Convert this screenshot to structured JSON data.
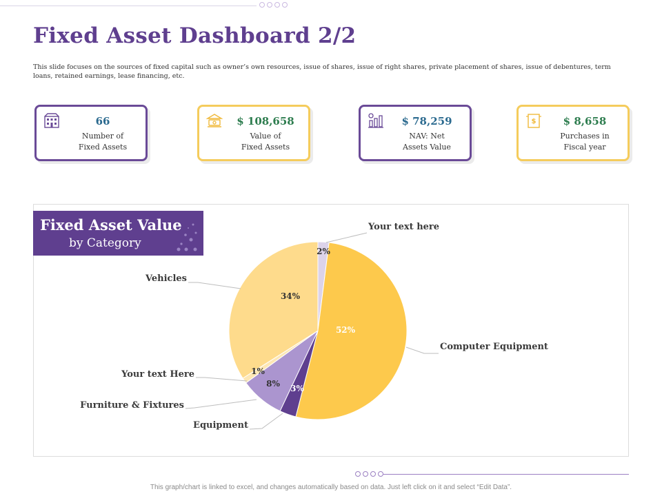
{
  "page": {
    "title": "Fixed Asset Dashboard 2/2",
    "description": "This slide focuses on the sources of fixed capital such as owner’s own resources, issue of shares, issue of right shares, private placement of shares, issue of debentures, term loans, retained earnings, lease financing, etc.",
    "footer": "This graph/chart is linked to excel, and changes automatically based on data. Just left click on it and select “Edit Data”."
  },
  "kpis": [
    {
      "value": "66",
      "label1": "Number of",
      "label2": "Fixed Assets",
      "icon": "building-icon",
      "color": "#2b6a8f"
    },
    {
      "value": "$ 108,658",
      "label1": "Value of",
      "label2": "Fixed Assets",
      "icon": "bank-icon",
      "color": "#2e7d4f"
    },
    {
      "value": "$ 78,259",
      "label1": "NAV: Net",
      "label2": "Assets Value",
      "icon": "growth-chart-icon",
      "color": "#2b6a8f"
    },
    {
      "value": "$ 8,658",
      "label1": "Purchases in",
      "label2": "Fiscal year",
      "icon": "purchase-doc-icon",
      "color": "#2e7d4f"
    }
  ],
  "chart_header": {
    "title": "Fixed Asset Value",
    "subtitle": "by Category"
  },
  "chart_data": {
    "type": "pie",
    "slices": [
      {
        "name": "Your text here",
        "value": 2,
        "label": "2%",
        "color": "#dcd3ea"
      },
      {
        "name": "Computer Equipment",
        "value": 52,
        "label": "52%",
        "color": "#fdc94c"
      },
      {
        "name": "Equipment",
        "value": 3,
        "label": "3%",
        "color": "#5f3f8f"
      },
      {
        "name": "Furniture & Fixtures",
        "value": 8,
        "label": "8%",
        "color": "#ab95cf"
      },
      {
        "name": "Your text Here",
        "value": 1,
        "label": "1%",
        "color": "#fde7b4"
      },
      {
        "name": "Vehicles",
        "value": 34,
        "label": "34%",
        "color": "#fedb8c"
      }
    ]
  }
}
